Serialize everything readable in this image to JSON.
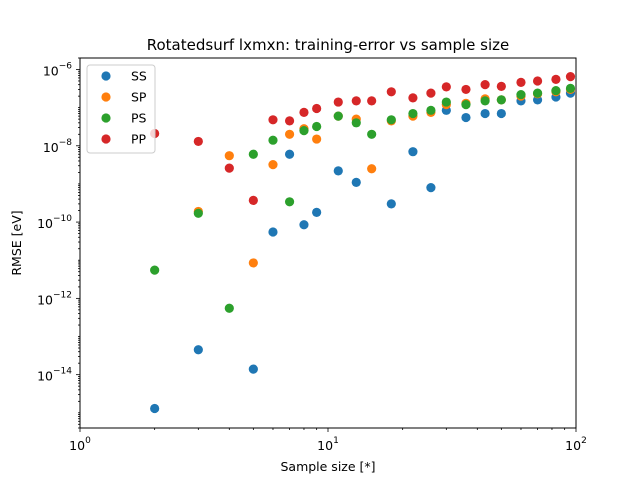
{
  "chart_data": {
    "type": "scatter",
    "title": "Rotatedsurf lxmxn: training-error vs sample size",
    "xlabel": "Sample size [*]",
    "ylabel": "RMSE [eV]",
    "xscale": "log",
    "yscale": "log",
    "xlim": [
      1,
      100
    ],
    "ylim": [
      4e-16,
      2e-06
    ],
    "xticks": [
      {
        "value": 1,
        "base": "10",
        "exp": "0"
      },
      {
        "value": 10,
        "base": "10",
        "exp": "1"
      },
      {
        "value": 100,
        "base": "10",
        "exp": "2"
      }
    ],
    "yticks": [
      {
        "value": 1e-14,
        "base": "10",
        "exp": "−14"
      },
      {
        "value": 1e-12,
        "base": "10",
        "exp": "−12"
      },
      {
        "value": 1e-10,
        "base": "10",
        "exp": "−10"
      },
      {
        "value": 1e-08,
        "base": "10",
        "exp": "−8"
      },
      {
        "value": 1e-06,
        "base": "10",
        "exp": "−6"
      }
    ],
    "grid": false,
    "legend": "top-left",
    "series": [
      {
        "name": "SS",
        "color": "#1f77b4",
        "points": [
          [
            2,
            1.3e-15
          ],
          [
            3,
            4.5e-14
          ],
          [
            5,
            1.4e-14
          ],
          [
            6,
            5.5e-11
          ],
          [
            7,
            6e-09
          ],
          [
            8,
            8.5e-11
          ],
          [
            9,
            1.8e-10
          ],
          [
            11,
            2.2e-09
          ],
          [
            13,
            1.1e-09
          ],
          [
            18,
            3e-10
          ],
          [
            22,
            7e-09
          ],
          [
            26,
            8e-10
          ],
          [
            30,
            8.5e-08
          ],
          [
            36,
            5.5e-08
          ],
          [
            43,
            7e-08
          ],
          [
            50,
            7e-08
          ],
          [
            60,
            1.5e-07
          ],
          [
            70,
            1.6e-07
          ],
          [
            83,
            1.9e-07
          ],
          [
            95,
            2.4e-07
          ]
        ]
      },
      {
        "name": "SP",
        "color": "#ff7f0e",
        "points": [
          [
            3,
            1.9e-10
          ],
          [
            4,
            5.5e-09
          ],
          [
            5,
            8.5e-12
          ],
          [
            6,
            3.2e-09
          ],
          [
            7,
            2e-08
          ],
          [
            8,
            2.8e-08
          ],
          [
            9,
            1.5e-08
          ],
          [
            11,
            6e-08
          ],
          [
            13,
            5e-08
          ],
          [
            15,
            2.5e-09
          ],
          [
            18,
            4.5e-08
          ],
          [
            22,
            6e-08
          ],
          [
            26,
            7.5e-08
          ],
          [
            30,
            1.2e-07
          ],
          [
            36,
            1.3e-07
          ],
          [
            43,
            1.7e-07
          ],
          [
            50,
            1.6e-07
          ],
          [
            60,
            2e-07
          ],
          [
            70,
            2.3e-07
          ],
          [
            83,
            2.6e-07
          ],
          [
            95,
            3e-07
          ]
        ]
      },
      {
        "name": "PS",
        "color": "#2ca02c",
        "points": [
          [
            2,
            5.5e-12
          ],
          [
            3,
            1.7e-10
          ],
          [
            4,
            5.5e-13
          ],
          [
            5,
            6e-09
          ],
          [
            6,
            1.4e-08
          ],
          [
            7,
            3.4e-10
          ],
          [
            8,
            2.5e-08
          ],
          [
            9,
            3.2e-08
          ],
          [
            11,
            6e-08
          ],
          [
            13,
            4e-08
          ],
          [
            15,
            2e-08
          ],
          [
            18,
            4.8e-08
          ],
          [
            22,
            7e-08
          ],
          [
            26,
            8.5e-08
          ],
          [
            30,
            1.4e-07
          ],
          [
            36,
            1.2e-07
          ],
          [
            43,
            1.5e-07
          ],
          [
            50,
            1.6e-07
          ],
          [
            60,
            2.2e-07
          ],
          [
            70,
            2.4e-07
          ],
          [
            83,
            2.8e-07
          ],
          [
            95,
            3.2e-07
          ]
        ]
      },
      {
        "name": "PP",
        "color": "#d62728",
        "points": [
          [
            2,
            2.1e-08
          ],
          [
            3,
            1.3e-08
          ],
          [
            4,
            2.6e-09
          ],
          [
            5,
            3.7e-10
          ],
          [
            6,
            4.8e-08
          ],
          [
            7,
            4.5e-08
          ],
          [
            8,
            7.5e-08
          ],
          [
            9,
            9.5e-08
          ],
          [
            11,
            1.4e-07
          ],
          [
            13,
            1.5e-07
          ],
          [
            15,
            1.5e-07
          ],
          [
            18,
            2.6e-07
          ],
          [
            22,
            1.8e-07
          ],
          [
            26,
            2.4e-07
          ],
          [
            30,
            3.5e-07
          ],
          [
            36,
            3e-07
          ],
          [
            43,
            4e-07
          ],
          [
            50,
            3.6e-07
          ],
          [
            60,
            4.6e-07
          ],
          [
            70,
            5e-07
          ],
          [
            83,
            5.5e-07
          ],
          [
            95,
            6.5e-07
          ]
        ]
      }
    ]
  }
}
